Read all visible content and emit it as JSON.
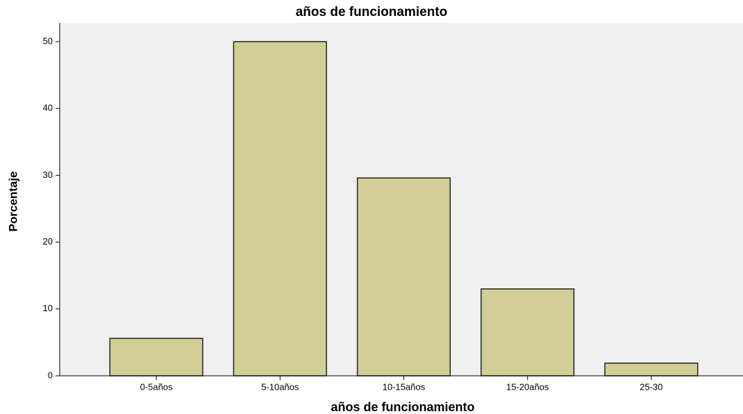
{
  "chart_data": {
    "type": "bar",
    "title": "años de funcionamiento",
    "x_label": "años de funcionamiento",
    "y_label": "Porcentaje",
    "categories": [
      "0-5años",
      "5-10años",
      "10-15años",
      "15-20años",
      "25-30"
    ],
    "values": [
      5.6,
      50,
      29.6,
      13.0,
      1.9
    ],
    "color": "#d3ce97",
    "ylim": [
      0,
      52.8
    ],
    "yticks": [
      0,
      10,
      20,
      30,
      40,
      50
    ],
    "grid": false
  }
}
